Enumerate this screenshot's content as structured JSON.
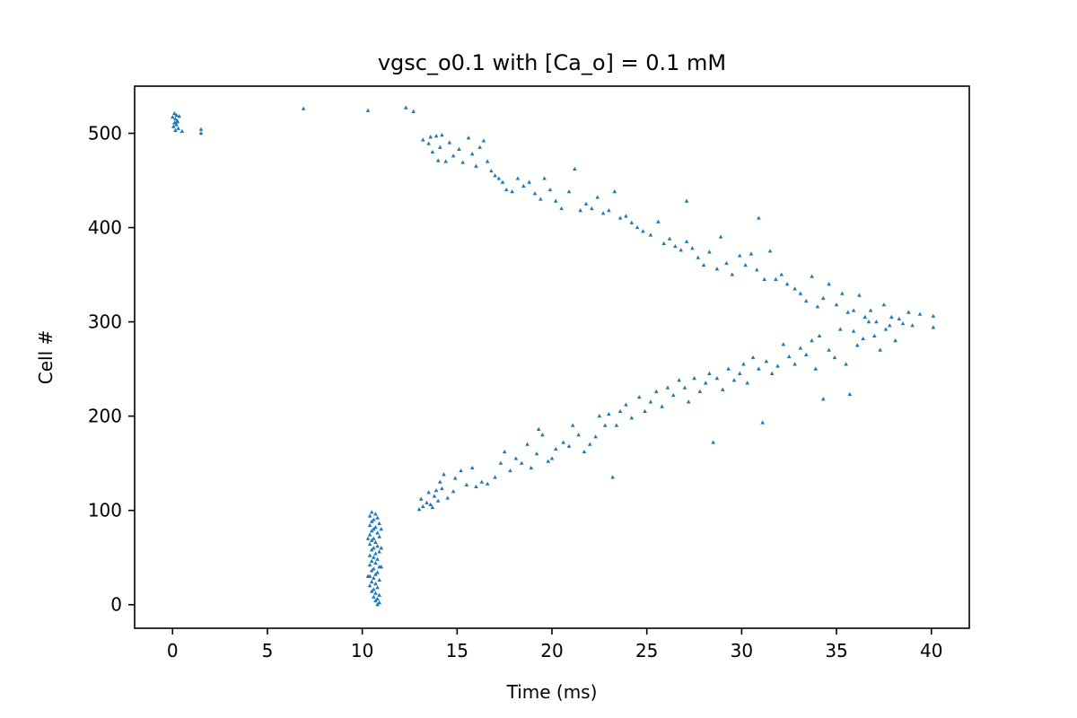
{
  "chart_data": {
    "type": "scatter",
    "title": "vgsc_o0.1 with [Ca_o] = 0.1 mM",
    "xlabel": "Time (ms)",
    "ylabel": "Cell #",
    "xlim": [
      -2,
      42
    ],
    "ylim": [
      -25,
      550
    ],
    "xticks": [
      0,
      5,
      10,
      15,
      20,
      25,
      30,
      35,
      40
    ],
    "yticks": [
      0,
      100,
      200,
      300,
      400,
      500
    ],
    "grid": false,
    "legend": "none",
    "marker": "triangle-up",
    "color": "#1f77b4",
    "series": [
      {
        "points": [
          [
            0.1,
            521
          ],
          [
            0.2,
            519
          ],
          [
            0.0,
            517
          ],
          [
            0.15,
            515
          ],
          [
            0.25,
            513
          ],
          [
            0.1,
            511
          ],
          [
            0.2,
            509
          ],
          [
            0.05,
            507
          ],
          [
            0.3,
            505
          ],
          [
            0.15,
            503
          ],
          [
            0.35,
            518
          ],
          [
            0.25,
            512
          ],
          [
            0.5,
            502
          ],
          [
            1.5,
            504
          ],
          [
            1.5,
            500
          ],
          [
            6.9,
            526
          ],
          [
            10.3,
            524
          ],
          [
            12.3,
            527
          ],
          [
            12.7,
            523
          ],
          [
            10.5,
            98
          ],
          [
            10.7,
            96
          ],
          [
            10.4,
            94
          ],
          [
            10.8,
            92
          ],
          [
            10.6,
            90
          ],
          [
            10.5,
            88
          ],
          [
            10.9,
            86
          ],
          [
            10.4,
            84
          ],
          [
            10.7,
            82
          ],
          [
            10.6,
            80
          ],
          [
            10.5,
            78
          ],
          [
            10.8,
            76
          ],
          [
            10.4,
            74
          ],
          [
            10.9,
            72
          ],
          [
            10.6,
            70
          ],
          [
            10.5,
            68
          ],
          [
            10.7,
            66
          ],
          [
            10.4,
            64
          ],
          [
            10.8,
            62
          ],
          [
            10.6,
            60
          ],
          [
            10.5,
            58
          ],
          [
            10.9,
            56
          ],
          [
            10.7,
            54
          ],
          [
            10.4,
            52
          ],
          [
            10.6,
            50
          ],
          [
            10.8,
            48
          ],
          [
            10.5,
            46
          ],
          [
            10.7,
            44
          ],
          [
            10.4,
            42
          ],
          [
            10.9,
            40
          ],
          [
            10.6,
            38
          ],
          [
            10.5,
            36
          ],
          [
            10.8,
            34
          ],
          [
            10.7,
            32
          ],
          [
            10.4,
            30
          ],
          [
            10.6,
            28
          ],
          [
            10.9,
            26
          ],
          [
            10.5,
            24
          ],
          [
            10.7,
            22
          ],
          [
            10.4,
            20
          ],
          [
            10.8,
            18
          ],
          [
            10.6,
            16
          ],
          [
            10.5,
            14
          ],
          [
            10.7,
            12
          ],
          [
            10.9,
            10
          ],
          [
            10.6,
            8
          ],
          [
            10.8,
            6
          ],
          [
            10.7,
            4
          ],
          [
            10.9,
            2
          ],
          [
            10.8,
            0
          ],
          [
            11.0,
            80
          ],
          [
            11.0,
            60
          ],
          [
            11.0,
            40
          ],
          [
            10.3,
            70
          ],
          [
            10.3,
            30
          ],
          [
            13.0,
            101
          ],
          [
            13.2,
            104
          ],
          [
            13.4,
            108
          ],
          [
            13.1,
            112
          ],
          [
            13.6,
            106
          ],
          [
            13.8,
            115
          ],
          [
            13.5,
            119
          ],
          [
            14.0,
            110
          ],
          [
            13.9,
            121
          ],
          [
            14.2,
            123
          ],
          [
            13.7,
            103
          ],
          [
            14.5,
            113
          ],
          [
            14.8,
            120
          ],
          [
            14.1,
            130
          ],
          [
            14.3,
            138
          ],
          [
            14.9,
            134
          ],
          [
            15.2,
            142
          ],
          [
            15.5,
            127
          ],
          [
            15.8,
            145
          ],
          [
            16.0,
            125
          ],
          [
            16.3,
            130
          ],
          [
            16.6,
            128
          ],
          [
            17.0,
            135
          ],
          [
            17.3,
            150
          ],
          [
            17.5,
            162
          ],
          [
            17.8,
            142
          ],
          [
            18.1,
            155
          ],
          [
            18.4,
            150
          ],
          [
            18.7,
            170
          ],
          [
            18.9,
            145
          ],
          [
            19.2,
            160
          ],
          [
            19.5,
            180
          ],
          [
            19.3,
            186
          ],
          [
            19.8,
            152
          ],
          [
            20.0,
            155
          ],
          [
            20.2,
            165
          ],
          [
            20.6,
            172
          ],
          [
            20.9,
            168
          ],
          [
            21.1,
            190
          ],
          [
            21.4,
            180
          ],
          [
            21.7,
            162
          ],
          [
            22.0,
            170
          ],
          [
            22.3,
            178
          ],
          [
            22.5,
            200
          ],
          [
            22.8,
            190
          ],
          [
            23.0,
            202
          ],
          [
            23.2,
            135
          ],
          [
            23.4,
            190
          ],
          [
            23.6,
            205
          ],
          [
            23.9,
            212
          ],
          [
            24.2,
            198
          ],
          [
            24.6,
            220
          ],
          [
            24.9,
            205
          ],
          [
            25.2,
            215
          ],
          [
            25.5,
            226
          ],
          [
            25.8,
            210
          ],
          [
            26.1,
            230
          ],
          [
            26.4,
            222
          ],
          [
            26.7,
            238
          ],
          [
            27.0,
            230
          ],
          [
            27.2,
            215
          ],
          [
            27.5,
            240
          ],
          [
            27.8,
            226
          ],
          [
            28.1,
            235
          ],
          [
            28.3,
            245
          ],
          [
            28.5,
            172
          ],
          [
            28.7,
            240
          ],
          [
            29.0,
            228
          ],
          [
            29.3,
            250
          ],
          [
            29.6,
            238
          ],
          [
            29.9,
            245
          ],
          [
            30.1,
            255
          ],
          [
            30.3,
            235
          ],
          [
            30.6,
            262
          ],
          [
            30.9,
            250
          ],
          [
            31.1,
            193
          ],
          [
            31.3,
            258
          ],
          [
            31.6,
            245
          ],
          [
            31.9,
            253
          ],
          [
            32.2,
            276
          ],
          [
            32.5,
            263
          ],
          [
            32.8,
            255
          ],
          [
            33.1,
            272
          ],
          [
            33.4,
            265
          ],
          [
            33.7,
            280
          ],
          [
            33.9,
            250
          ],
          [
            34.1,
            285
          ],
          [
            34.3,
            218
          ],
          [
            34.6,
            270
          ],
          [
            34.9,
            262
          ],
          [
            35.2,
            292
          ],
          [
            35.5,
            255
          ],
          [
            35.7,
            223
          ],
          [
            35.9,
            290
          ],
          [
            36.1,
            275
          ],
          [
            36.4,
            282
          ],
          [
            36.7,
            300
          ],
          [
            37.0,
            285
          ],
          [
            37.3,
            270
          ],
          [
            37.6,
            292
          ],
          [
            37.8,
            296
          ],
          [
            38.1,
            280
          ],
          [
            38.5,
            298
          ],
          [
            39.0,
            296
          ],
          [
            40.1,
            294
          ],
          [
            13.2,
            493
          ],
          [
            13.5,
            489
          ],
          [
            13.7,
            480
          ],
          [
            13.6,
            496
          ],
          [
            13.9,
            497
          ],
          [
            14.0,
            471
          ],
          [
            14.1,
            485
          ],
          [
            14.2,
            498
          ],
          [
            14.4,
            470
          ],
          [
            14.6,
            490
          ],
          [
            14.8,
            476
          ],
          [
            15.1,
            483
          ],
          [
            15.3,
            469
          ],
          [
            15.6,
            495
          ],
          [
            15.8,
            478
          ],
          [
            16.0,
            465
          ],
          [
            16.2,
            485
          ],
          [
            16.4,
            492
          ],
          [
            16.6,
            470
          ],
          [
            16.8,
            460
          ],
          [
            17.0,
            455
          ],
          [
            17.2,
            452
          ],
          [
            17.4,
            448
          ],
          [
            17.6,
            440
          ],
          [
            17.9,
            438
          ],
          [
            18.2,
            452
          ],
          [
            18.5,
            444
          ],
          [
            18.8,
            448
          ],
          [
            19.1,
            436
          ],
          [
            19.4,
            430
          ],
          [
            19.6,
            452
          ],
          [
            19.9,
            440
          ],
          [
            20.2,
            428
          ],
          [
            20.5,
            420
          ],
          [
            20.9,
            438
          ],
          [
            21.2,
            462
          ],
          [
            21.5,
            418
          ],
          [
            21.8,
            425
          ],
          [
            22.1,
            420
          ],
          [
            22.4,
            432
          ],
          [
            22.7,
            415
          ],
          [
            23.0,
            418
          ],
          [
            23.3,
            438
          ],
          [
            23.6,
            410
          ],
          [
            23.9,
            412
          ],
          [
            24.2,
            405
          ],
          [
            24.5,
            400
          ],
          [
            24.8,
            396
          ],
          [
            25.2,
            392
          ],
          [
            25.6,
            406
          ],
          [
            25.9,
            383
          ],
          [
            26.2,
            388
          ],
          [
            26.5,
            380
          ],
          [
            26.8,
            376
          ],
          [
            27.1,
            385
          ],
          [
            27.1,
            428
          ],
          [
            27.4,
            378
          ],
          [
            27.7,
            368
          ],
          [
            28.0,
            360
          ],
          [
            28.3,
            374
          ],
          [
            28.7,
            356
          ],
          [
            28.9,
            390
          ],
          [
            29.2,
            362
          ],
          [
            29.5,
            350
          ],
          [
            29.9,
            370
          ],
          [
            30.2,
            360
          ],
          [
            30.5,
            372
          ],
          [
            30.8,
            355
          ],
          [
            30.9,
            410
          ],
          [
            31.2,
            345
          ],
          [
            31.5,
            375
          ],
          [
            31.8,
            345
          ],
          [
            32.1,
            350
          ],
          [
            32.4,
            340
          ],
          [
            32.8,
            335
          ],
          [
            33.1,
            330
          ],
          [
            33.4,
            322
          ],
          [
            33.7,
            348
          ],
          [
            34.0,
            316
          ],
          [
            34.3,
            325
          ],
          [
            34.6,
            340
          ],
          [
            35.0,
            318
          ],
          [
            35.3,
            330
          ],
          [
            35.6,
            310
          ],
          [
            35.9,
            312
          ],
          [
            36.2,
            328
          ],
          [
            36.5,
            305
          ],
          [
            36.8,
            312
          ],
          [
            37.1,
            300
          ],
          [
            37.5,
            318
          ],
          [
            37.9,
            305
          ],
          [
            38.3,
            303
          ],
          [
            38.8,
            310
          ],
          [
            39.4,
            308
          ],
          [
            40.1,
            306
          ]
        ]
      }
    ]
  }
}
